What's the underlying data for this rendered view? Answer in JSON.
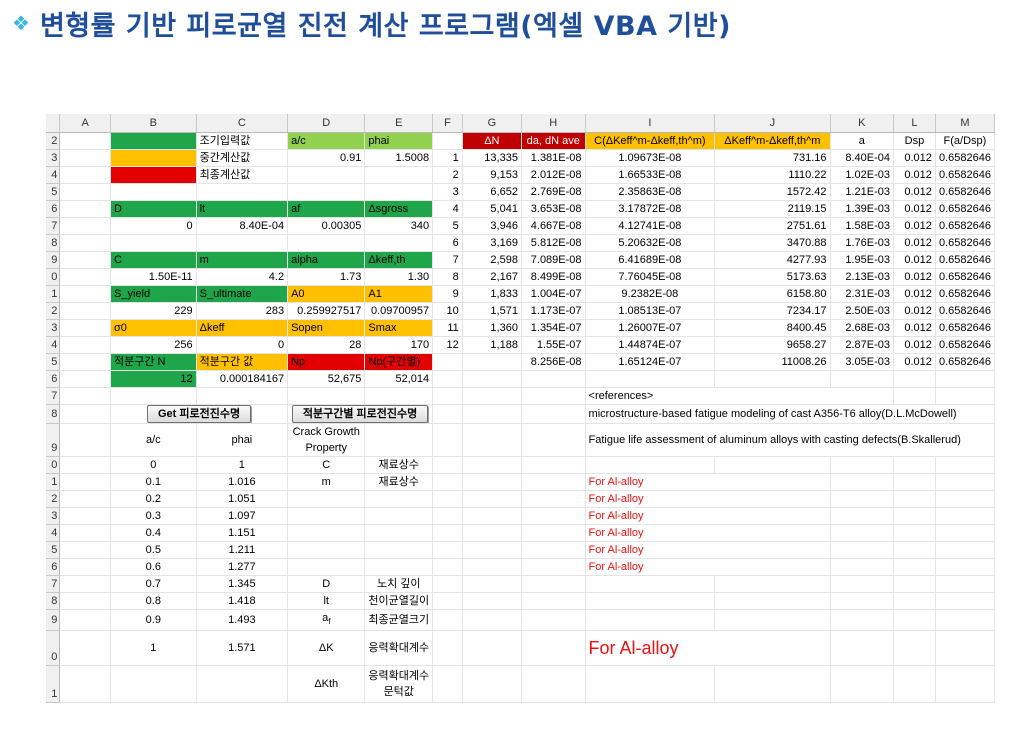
{
  "title": {
    "icon": "diamond-bullet-icon",
    "text": "변형률 기반 피로균열 진전 계산 프로그램(엑셀 VBA 기반)"
  },
  "columns": [
    "A",
    "B",
    "C",
    "D",
    "E",
    "F",
    "G",
    "H",
    "I",
    "J",
    "K",
    "L",
    "M"
  ],
  "row_numbers": [
    "2",
    "3",
    "4",
    "5",
    "6",
    "7",
    "8",
    "9",
    "0",
    "1",
    "2",
    "3",
    "4",
    "5",
    "6",
    "7",
    "8",
    "9",
    "0",
    "1",
    "2",
    "3",
    "4",
    "5",
    "6",
    "7",
    "8",
    "9",
    "0",
    "1"
  ],
  "legend": {
    "input": "조기입력값",
    "intermediate": "중간계산값",
    "final": "최종계산값"
  },
  "params": {
    "a_c": "a/c",
    "phai": "phai",
    "a_c_val": "0.91",
    "phai_val": "1.5008",
    "D": "D",
    "lt": "lt",
    "af": "af",
    "dsgross": "Δsgross",
    "D_val": "0",
    "lt_val": "8.40E-04",
    "af_val": "0.00305",
    "dsgross_val": "340",
    "C": "C",
    "m": "m",
    "alpha": "alpha",
    "dkeff_th": "Δkeff,th",
    "C_val": "1.50E-11",
    "m_val": "4.2",
    "alpha_val": "1.73",
    "dkeff_th_val": "1.30",
    "S_yield": "S_yield",
    "S_ultimate": "S_ultimate",
    "A0": "A0",
    "A1": "A1",
    "S_yield_val": "229",
    "S_ultimate_val": "283",
    "A0_val": "0.259927517",
    "A1_val": "0.09700957",
    "sigma0": "σ0",
    "dkeff": "Δkeff",
    "Sopen": "Sopen",
    "Smax": "Smax",
    "sigma0_val": "256",
    "dkeff_val": "0",
    "Sopen_val": "28",
    "Smax_val": "170",
    "N": "적분구간 N",
    "Nval_label": "적분구간 값",
    "Np": "Np",
    "Np_sec": "Np(구간별)",
    "N_val": "12",
    "Nval_val": "0.000184167",
    "Np_val": "52,675",
    "Np_sec_val": "52,014"
  },
  "buttons": {
    "get_life": "Get 피로전진수명",
    "section_life": "적분구간별 피로전진수명"
  },
  "lookup": {
    "h_ac": "a/c",
    "h_phai": "phai",
    "h_prop": "Crack Growth Property",
    "rows": [
      [
        "0",
        "1"
      ],
      [
        "0.1",
        "1.016"
      ],
      [
        "0.2",
        "1.051"
      ],
      [
        "0.3",
        "1.097"
      ],
      [
        "0.4",
        "1.151"
      ],
      [
        "0.5",
        "1.211"
      ],
      [
        "0.6",
        "1.277"
      ],
      [
        "0.7",
        "1.345"
      ],
      [
        "0.8",
        "1.418"
      ],
      [
        "0.9",
        "1.493"
      ],
      [
        "1",
        "1.571"
      ]
    ]
  },
  "props": {
    "p1": "C",
    "p1d": "재료상수",
    "p2": "m",
    "p2d": "재료상수",
    "p3": "D",
    "p3d": "노치 깊이",
    "p4": "lt",
    "p4d": "천이균열길이",
    "p5": "a",
    "p5sub": "f",
    "p5d": "최종균열크기",
    "p6": "ΔK",
    "p6d": "응력확대계수",
    "p7": "ΔKth",
    "p7d": "응력확대계수 문턱값"
  },
  "table_headers": {
    "dN": "ΔN",
    "dadN": "da, dN ave",
    "Cterm": "C(ΔKeff^m-Δkeff,th^m)",
    "Kterm": "ΔKeff^m-Δkeff,th^m",
    "a": "a",
    "Dsp": "Dsp",
    "F": "F(a/Dsp)"
  },
  "table_rows": [
    [
      "1",
      "13,335",
      "1.381E-08",
      "1.09673E-08",
      "731.16",
      "8.40E-04",
      "0.012",
      "0.6582646"
    ],
    [
      "2",
      "9,153",
      "2.012E-08",
      "1.66533E-08",
      "1110.22",
      "1.02E-03",
      "0.012",
      "0.6582646"
    ],
    [
      "3",
      "6,652",
      "2.769E-08",
      "2.35863E-08",
      "1572.42",
      "1.21E-03",
      "0.012",
      "0.6582646"
    ],
    [
      "4",
      "5,041",
      "3.653E-08",
      "3.17872E-08",
      "2119.15",
      "1.39E-03",
      "0.012",
      "0.6582646"
    ],
    [
      "5",
      "3,946",
      "4.667E-08",
      "4.12741E-08",
      "2751.61",
      "1.58E-03",
      "0.012",
      "0.6582646"
    ],
    [
      "6",
      "3,169",
      "5.812E-08",
      "5.20632E-08",
      "3470.88",
      "1.76E-03",
      "0.012",
      "0.6582646"
    ],
    [
      "7",
      "2,598",
      "7.089E-08",
      "6.41689E-08",
      "4277.93",
      "1.95E-03",
      "0.012",
      "0.6582646"
    ],
    [
      "8",
      "2,167",
      "8.499E-08",
      "7.76045E-08",
      "5173.63",
      "2.13E-03",
      "0.012",
      "0.6582646"
    ],
    [
      "9",
      "1,833",
      "1.004E-07",
      "9.2382E-08",
      "6158.80",
      "2.31E-03",
      "0.012",
      "0.6582646"
    ],
    [
      "10",
      "1,571",
      "1.173E-07",
      "1.08513E-07",
      "7234.17",
      "2.50E-03",
      "0.012",
      "0.6582646"
    ],
    [
      "11",
      "1,360",
      "1.354E-07",
      "1.26007E-07",
      "8400.45",
      "2.68E-03",
      "0.012",
      "0.6582646"
    ],
    [
      "12",
      "1,188",
      "1.55E-07",
      "1.44874E-07",
      "9658.27",
      "2.87E-03",
      "0.012",
      "0.6582646"
    ],
    [
      "",
      "",
      "8.256E-08",
      "1.65124E-07",
      "11008.26",
      "3.05E-03",
      "0.012",
      "0.6582646"
    ]
  ],
  "references": {
    "heading": "<references>",
    "ref1": "microstructure-based fatigue modeling of cast A356-T6 alloy(D.L.McDowell)",
    "ref2": "Fatigue life assessment of aluminum alloys with casting defects(B.Skallerud)",
    "note": "For Al-alloy",
    "note_big": "For Al-alloy"
  },
  "colors": {
    "input": "#1fa64a",
    "intermediate": "#ffc000",
    "final": "#e20000",
    "title": "#1f4e9a",
    "note": "#ee1111"
  }
}
